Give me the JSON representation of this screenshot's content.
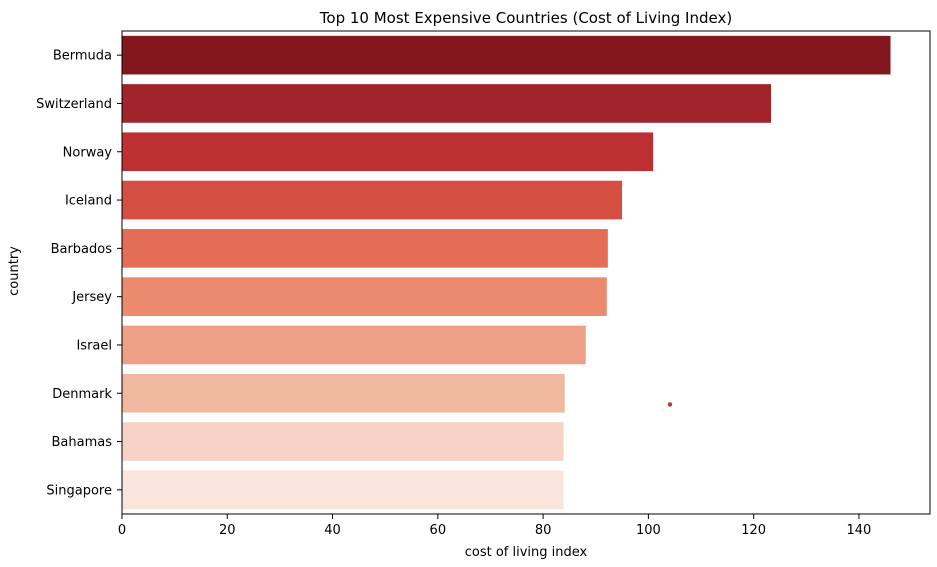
{
  "chart_data": {
    "type": "bar",
    "orientation": "horizontal",
    "title": "Top 10 Most Expensive Countries (Cost of Living Index)",
    "xlabel": "cost of living index",
    "ylabel": "country",
    "categories": [
      "Bermuda",
      "Switzerland",
      "Norway",
      "Iceland",
      "Barbados",
      "Jersey",
      "Israel",
      "Denmark",
      "Bahamas",
      "Singapore"
    ],
    "values": [
      146.0,
      123.3,
      100.9,
      95.0,
      92.3,
      92.1,
      88.1,
      84.1,
      83.9,
      83.9
    ],
    "xlim": [
      0,
      153.5
    ],
    "xticks": [
      "0",
      "20",
      "40",
      "60",
      "80",
      "100",
      "120",
      "140"
    ],
    "grid": false,
    "colors": [
      "#82171e",
      "#a1242b",
      "#bc3033",
      "#d44e42",
      "#e46d58",
      "#eb8a6e",
      "#eda086",
      "#f1b8a0",
      "#f6d3c5",
      "#fae5dd"
    ],
    "annotation_point": {
      "x": 104.1,
      "y_between": [
        "Denmark",
        "Bahamas"
      ],
      "color": "#c0392b"
    }
  }
}
